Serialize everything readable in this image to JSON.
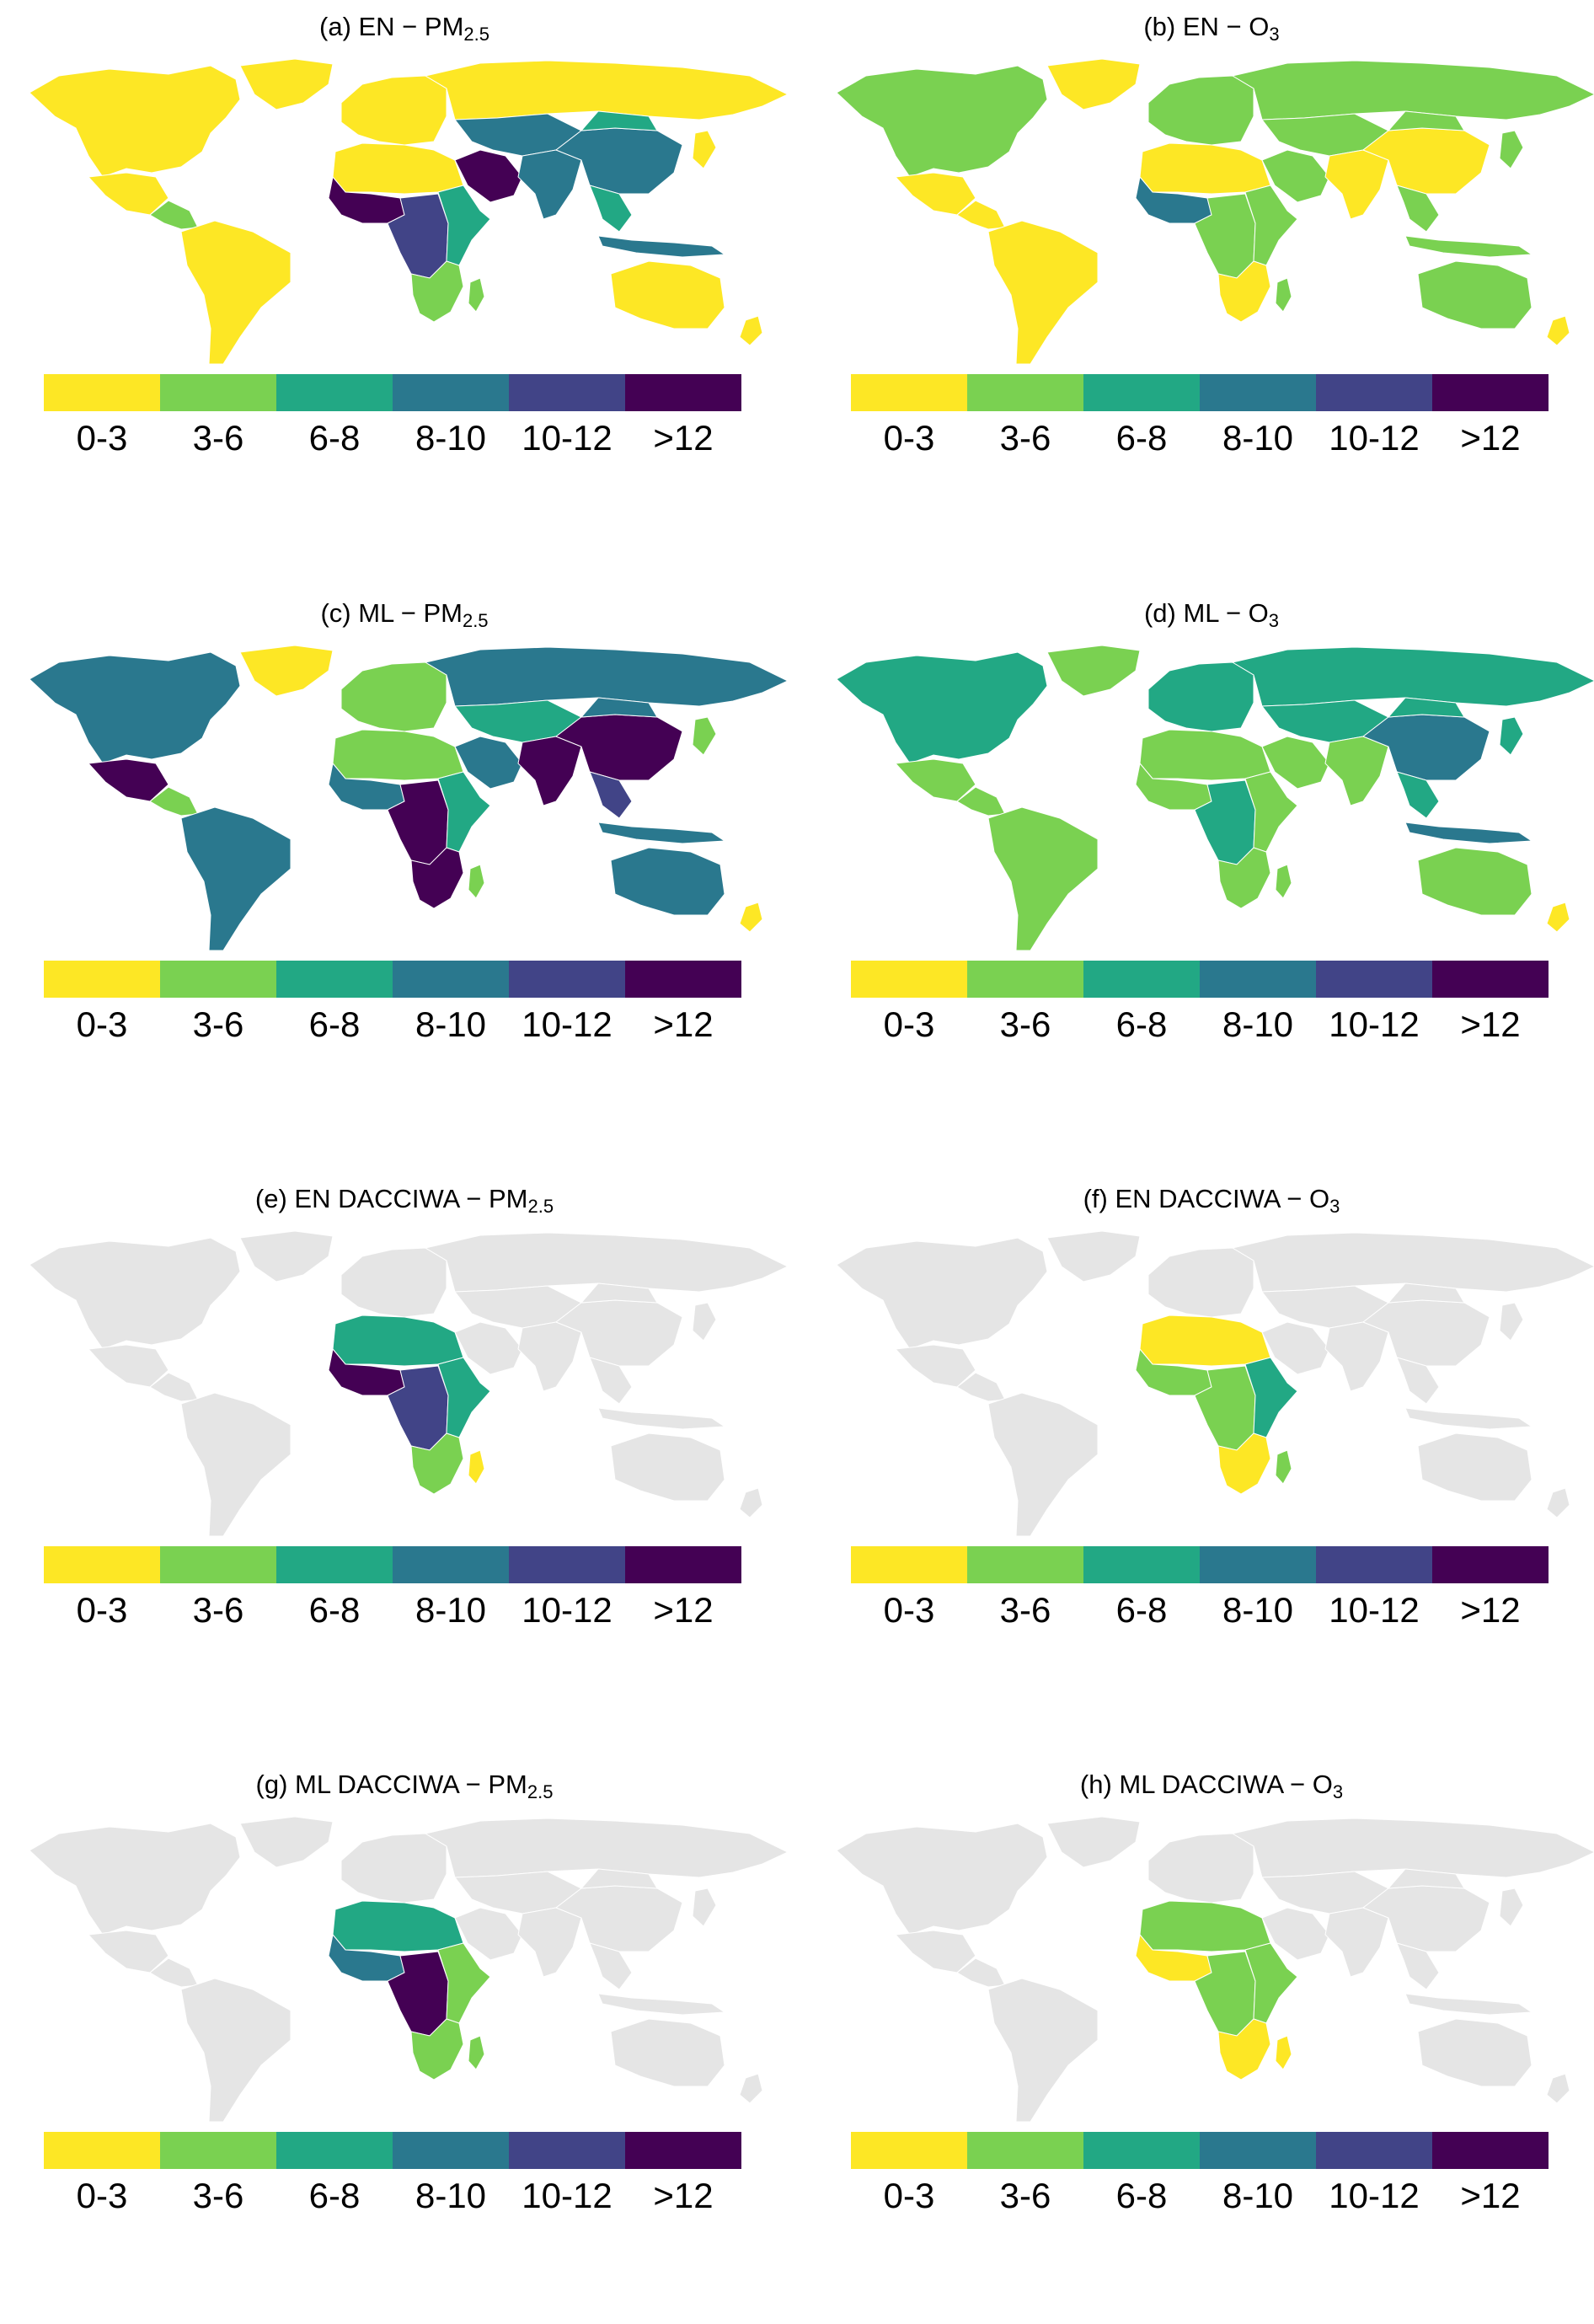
{
  "legend": {
    "labels": [
      "0-3",
      "3-6",
      "6-8",
      "8-10",
      "10-12",
      ">12"
    ],
    "colors": [
      "#fde725",
      "#7ad151",
      "#22a884",
      "#2a788e",
      "#414487",
      "#440154"
    ]
  },
  "no_data_color": "#e5e5e5",
  "panels": [
    {
      "title_main": "(a) EN − PM",
      "title_sub": "2.5",
      "fills": {
        "NAm": 0,
        "GRL": 0,
        "MEX": 0,
        "CAM": 1,
        "SAm": 0,
        "EUR": 0,
        "RUS": 0,
        "NAF": 0,
        "WAF": 5,
        "CAF": 4,
        "EAF": 2,
        "SAF": 1,
        "MDG": 1,
        "ARB": 5,
        "CAS": 3,
        "IND": 3,
        "CHN": 3,
        "MON": 2,
        "JPN": 0,
        "SEA": 2,
        "IDN": 3,
        "AUS": 0,
        "NZL": 0
      }
    },
    {
      "title_main": "(b) EN − O",
      "title_sub": "3",
      "fills": {
        "NAm": 1,
        "GRL": 0,
        "MEX": 0,
        "CAM": 0,
        "SAm": 0,
        "EUR": 1,
        "RUS": 1,
        "NAF": 0,
        "WAF": 3,
        "CAF": 1,
        "EAF": 1,
        "SAF": 0,
        "MDG": 1,
        "ARB": 1,
        "CAS": 1,
        "IND": 0,
        "CHN": 0,
        "MON": 1,
        "JPN": 1,
        "SEA": 1,
        "IDN": 1,
        "AUS": 1,
        "NZL": 0
      }
    },
    {
      "title_main": "(c) ML − PM",
      "title_sub": "2.5",
      "fills": {
        "NAm": 3,
        "GRL": 0,
        "MEX": 5,
        "CAM": 1,
        "SAm": 3,
        "EUR": 1,
        "RUS": 3,
        "NAF": 1,
        "WAF": 3,
        "CAF": 5,
        "EAF": 2,
        "SAF": 5,
        "MDG": 1,
        "ARB": 3,
        "CAS": 2,
        "IND": 5,
        "CHN": 5,
        "MON": 3,
        "JPN": 1,
        "SEA": 4,
        "IDN": 3,
        "AUS": 3,
        "NZL": 0
      }
    },
    {
      "title_main": "(d) ML − O",
      "title_sub": "3",
      "fills": {
        "NAm": 2,
        "GRL": 1,
        "MEX": 1,
        "CAM": 1,
        "SAm": 1,
        "EUR": 2,
        "RUS": 2,
        "NAF": 1,
        "WAF": 1,
        "CAF": 2,
        "EAF": 1,
        "SAF": 1,
        "MDG": 1,
        "ARB": 1,
        "CAS": 2,
        "IND": 1,
        "CHN": 3,
        "MON": 2,
        "JPN": 2,
        "SEA": 2,
        "IDN": 3,
        "AUS": 1,
        "NZL": 0
      }
    },
    {
      "title_main": "(e) EN DACCIWA − PM",
      "title_sub": "2.5",
      "fills": {
        "NAF": 2,
        "WAF": 5,
        "CAF": 4,
        "EAF": 2,
        "SAF": 1,
        "MDG": 0
      }
    },
    {
      "title_main": "(f) EN DACCIWA − O",
      "title_sub": "3",
      "fills": {
        "NAF": 0,
        "WAF": 1,
        "CAF": 1,
        "EAF": 2,
        "SAF": 0,
        "MDG": 1
      }
    },
    {
      "title_main": "(g) ML DACCIWA − PM",
      "title_sub": "2.5",
      "fills": {
        "NAF": 2,
        "WAF": 3,
        "CAF": 5,
        "EAF": 1,
        "SAF": 1,
        "MDG": 1
      }
    },
    {
      "title_main": "(h) ML DACCIWA − O",
      "title_sub": "3",
      "fills": {
        "NAF": 1,
        "WAF": 0,
        "CAF": 1,
        "EAF": 1,
        "SAF": 0,
        "MDG": 0
      }
    }
  ]
}
